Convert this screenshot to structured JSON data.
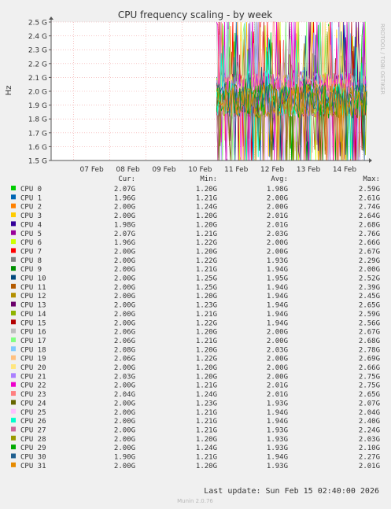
{
  "chart_data": {
    "type": "line",
    "title": "CPU frequency scaling - by week",
    "ylabel": "Hz",
    "side_label": "RRDTOOL / TOBI OETIKER",
    "ylim": [
      1.5,
      2.5
    ],
    "y_ticks": [
      {
        "v": 2.5,
        "label": "2.5 G"
      },
      {
        "v": 2.4,
        "label": "2.4 G"
      },
      {
        "v": 2.3,
        "label": "2.3 G"
      },
      {
        "v": 2.2,
        "label": "2.2 G"
      },
      {
        "v": 2.1,
        "label": "2.1 G"
      },
      {
        "v": 2.0,
        "label": "2.0 G"
      },
      {
        "v": 1.9,
        "label": "1.9 G"
      },
      {
        "v": 1.8,
        "label": "1.8 G"
      },
      {
        "v": 1.7,
        "label": "1.7 G"
      },
      {
        "v": 1.6,
        "label": "1.6 G"
      },
      {
        "v": 1.5,
        "label": "1.5 G"
      }
    ],
    "x_range": [
      "2026-02-06T09:00",
      "2026-02-15T02:40"
    ],
    "x_ticks": [
      {
        "date": "2026-02-07",
        "label": "07 Feb"
      },
      {
        "date": "2026-02-08",
        "label": "08 Feb"
      },
      {
        "date": "2026-02-09",
        "label": "09 Feb"
      },
      {
        "date": "2026-02-10",
        "label": "10 Feb"
      },
      {
        "date": "2026-02-11",
        "label": "11 Feb"
      },
      {
        "date": "2026-02-12",
        "label": "12 Feb"
      },
      {
        "date": "2026-02-13",
        "label": "13 Feb"
      },
      {
        "date": "2026-02-14",
        "label": "14 Feb"
      }
    ],
    "data_start": "2026-02-10T23:00",
    "grid": true,
    "legend_headers": [
      "Cur:",
      "Min:",
      "Avg:",
      "Max:"
    ],
    "series": [
      {
        "name": "CPU 0",
        "color": "#00cc00",
        "cur": "2.07G",
        "min": "1.20G",
        "avg": "1.98G",
        "max": "2.59G"
      },
      {
        "name": "CPU 1",
        "color": "#0066b3",
        "cur": "1.96G",
        "min": "1.21G",
        "avg": "2.00G",
        "max": "2.61G"
      },
      {
        "name": "CPU 2",
        "color": "#ff8000",
        "cur": "2.00G",
        "min": "1.24G",
        "avg": "2.00G",
        "max": "2.74G"
      },
      {
        "name": "CPU 3",
        "color": "#ffcc00",
        "cur": "2.00G",
        "min": "1.20G",
        "avg": "2.01G",
        "max": "2.64G"
      },
      {
        "name": "CPU 4",
        "color": "#330099",
        "cur": "1.98G",
        "min": "1.20G",
        "avg": "2.01G",
        "max": "2.68G"
      },
      {
        "name": "CPU 5",
        "color": "#990099",
        "cur": "2.07G",
        "min": "1.21G",
        "avg": "2.03G",
        "max": "2.76G"
      },
      {
        "name": "CPU 6",
        "color": "#ccff00",
        "cur": "1.96G",
        "min": "1.22G",
        "avg": "2.00G",
        "max": "2.66G"
      },
      {
        "name": "CPU 7",
        "color": "#ff0000",
        "cur": "2.00G",
        "min": "1.20G",
        "avg": "2.00G",
        "max": "2.67G"
      },
      {
        "name": "CPU 8",
        "color": "#808080",
        "cur": "2.00G",
        "min": "1.22G",
        "avg": "1.93G",
        "max": "2.29G"
      },
      {
        "name": "CPU 9",
        "color": "#008f00",
        "cur": "2.00G",
        "min": "1.21G",
        "avg": "1.94G",
        "max": "2.00G"
      },
      {
        "name": "CPU 10",
        "color": "#00487d",
        "cur": "2.00G",
        "min": "1.25G",
        "avg": "1.95G",
        "max": "2.52G"
      },
      {
        "name": "CPU 11",
        "color": "#b35a00",
        "cur": "2.00G",
        "min": "1.25G",
        "avg": "1.94G",
        "max": "2.39G"
      },
      {
        "name": "CPU 12",
        "color": "#b38f00",
        "cur": "2.00G",
        "min": "1.20G",
        "avg": "1.94G",
        "max": "2.45G"
      },
      {
        "name": "CPU 13",
        "color": "#6b006b",
        "cur": "2.00G",
        "min": "1.23G",
        "avg": "1.94G",
        "max": "2.65G"
      },
      {
        "name": "CPU 14",
        "color": "#8fb300",
        "cur": "2.00G",
        "min": "1.21G",
        "avg": "1.94G",
        "max": "2.59G"
      },
      {
        "name": "CPU 15",
        "color": "#b30000",
        "cur": "2.00G",
        "min": "1.22G",
        "avg": "1.94G",
        "max": "2.56G"
      },
      {
        "name": "CPU 16",
        "color": "#bebebe",
        "cur": "2.06G",
        "min": "1.20G",
        "avg": "2.00G",
        "max": "2.67G"
      },
      {
        "name": "CPU 17",
        "color": "#80ff80",
        "cur": "2.06G",
        "min": "1.21G",
        "avg": "2.00G",
        "max": "2.68G"
      },
      {
        "name": "CPU 18",
        "color": "#80c9ff",
        "cur": "2.08G",
        "min": "1.20G",
        "avg": "2.03G",
        "max": "2.78G"
      },
      {
        "name": "CPU 19",
        "color": "#ffc080",
        "cur": "2.06G",
        "min": "1.22G",
        "avg": "2.00G",
        "max": "2.69G"
      },
      {
        "name": "CPU 20",
        "color": "#ffe680",
        "cur": "2.00G",
        "min": "1.20G",
        "avg": "2.00G",
        "max": "2.66G"
      },
      {
        "name": "CPU 21",
        "color": "#aa80ff",
        "cur": "2.03G",
        "min": "1.20G",
        "avg": "2.00G",
        "max": "2.75G"
      },
      {
        "name": "CPU 22",
        "color": "#ee00cc",
        "cur": "2.00G",
        "min": "1.21G",
        "avg": "2.01G",
        "max": "2.75G"
      },
      {
        "name": "CPU 23",
        "color": "#ff8080",
        "cur": "2.04G",
        "min": "1.24G",
        "avg": "2.01G",
        "max": "2.65G"
      },
      {
        "name": "CPU 24",
        "color": "#666600",
        "cur": "2.00G",
        "min": "1.23G",
        "avg": "1.93G",
        "max": "2.07G"
      },
      {
        "name": "CPU 25",
        "color": "#ffbfff",
        "cur": "2.00G",
        "min": "1.21G",
        "avg": "1.94G",
        "max": "2.04G"
      },
      {
        "name": "CPU 26",
        "color": "#00ffcc",
        "cur": "2.00G",
        "min": "1.21G",
        "avg": "1.94G",
        "max": "2.40G"
      },
      {
        "name": "CPU 27",
        "color": "#cc6699",
        "cur": "2.00G",
        "min": "1.21G",
        "avg": "1.93G",
        "max": "2.24G"
      },
      {
        "name": "CPU 28",
        "color": "#999900",
        "cur": "2.00G",
        "min": "1.20G",
        "avg": "1.93G",
        "max": "2.03G"
      },
      {
        "name": "CPU 29",
        "color": "#00aa00",
        "cur": "2.00G",
        "min": "1.24G",
        "avg": "1.93G",
        "max": "2.10G"
      },
      {
        "name": "CPU 30",
        "color": "#1f5f8f",
        "cur": "1.90G",
        "min": "1.21G",
        "avg": "1.94G",
        "max": "2.27G"
      },
      {
        "name": "CPU 31",
        "color": "#e68a00",
        "cur": "2.00G",
        "min": "1.20G",
        "avg": "1.93G",
        "max": "2.01G"
      }
    ],
    "last_update": "Last update: Sun Feb 15 02:40:00 2026",
    "footer": "Munin 2.0.76"
  }
}
